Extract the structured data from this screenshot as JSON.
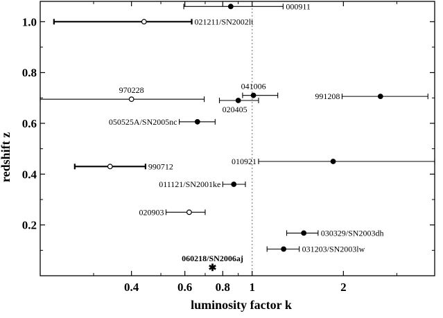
{
  "chart_data": {
    "type": "scatter",
    "xlabel": "luminosity factor k",
    "ylabel": "redshift z",
    "x_scale": "log",
    "xlim": [
      0.2,
      4.0
    ],
    "ylim": [
      0.0,
      1.08
    ],
    "x_ticks": [
      0.4,
      0.6,
      0.8,
      1,
      2
    ],
    "x_tick_labels": [
      "0.4",
      "0.6",
      "0.8",
      "1",
      "2"
    ],
    "y_ticks": [
      0.2,
      0.4,
      0.6,
      0.8,
      1.0
    ],
    "y_tick_labels": [
      "0.2",
      "0.4",
      "0.6",
      "0.8",
      "1.0"
    ],
    "reference_line": {
      "x": 1,
      "style": "dotted"
    },
    "points": [
      {
        "label": "000911",
        "x": 0.85,
        "xerr": [
          0.595,
          1.265
        ],
        "y": 1.06,
        "marker": "filled",
        "label_pos": "right",
        "bar": "thin"
      },
      {
        "label": "021211/SN2002lt",
        "x": 0.44,
        "xerr": [
          0.222,
          0.632
        ],
        "y": 1.0,
        "marker": "open",
        "label_pos": "right",
        "bar": "thick"
      },
      {
        "label": "041006",
        "x": 1.01,
        "xerr": [
          0.93,
          1.215
        ],
        "y": 0.71,
        "marker": "filled",
        "label_pos": "above",
        "bar": "thin"
      },
      {
        "label": "970228",
        "x": 0.4,
        "xerr": [
          0.2,
          0.695
        ],
        "y": 0.695,
        "marker": "open",
        "label_pos": "above",
        "bar": "thin"
      },
      {
        "label": "991208",
        "x": 2.65,
        "xerr": [
          1.98,
          3.8
        ],
        "y": 0.706,
        "marker": "filled",
        "label_pos": "left",
        "bar": "thin"
      },
      {
        "label": "020405",
        "x": 0.9,
        "xerr": [
          0.78,
          1.05
        ],
        "y": 0.69,
        "marker": "filled",
        "label_pos": "below",
        "bar": "thin"
      },
      {
        "label": "050525A/SN2005nc",
        "x": 0.66,
        "xerr": [
          0.575,
          0.755
        ],
        "y": 0.606,
        "marker": "filled",
        "label_pos": "left",
        "bar": "thin"
      },
      {
        "label": "010921",
        "x": 1.85,
        "xerr": [
          1.05,
          4.0
        ],
        "y": 0.45,
        "marker": "filled",
        "label_pos": "left",
        "bar": "thin"
      },
      {
        "label": "990712",
        "x": 0.34,
        "xerr": [
          0.26,
          0.445
        ],
        "y": 0.43,
        "marker": "open",
        "label_pos": "right",
        "bar": "thick"
      },
      {
        "label": "011121/SN2001ke",
        "x": 0.87,
        "xerr": [
          0.8,
          0.95
        ],
        "y": 0.36,
        "marker": "filled",
        "label_pos": "left",
        "bar": "thin"
      },
      {
        "label": "020903",
        "x": 0.62,
        "xerr": [
          0.52,
          0.7
        ],
        "y": 0.25,
        "marker": "open",
        "label_pos": "left",
        "bar": "thin"
      },
      {
        "label": "030329/SN2003dh",
        "x": 1.48,
        "xerr": [
          1.3,
          1.65
        ],
        "y": 0.168,
        "marker": "filled",
        "label_pos": "right",
        "bar": "thin"
      },
      {
        "label": "031203/SN2003lw",
        "x": 1.27,
        "xerr": [
          1.12,
          1.43
        ],
        "y": 0.105,
        "marker": "filled",
        "label_pos": "right",
        "bar": "thin"
      },
      {
        "label": "060218/SN2006aj",
        "x": 0.74,
        "xerr": null,
        "y": 0.033,
        "marker": "star",
        "label_pos": "above",
        "bar": "none",
        "label_bold": true
      }
    ]
  }
}
